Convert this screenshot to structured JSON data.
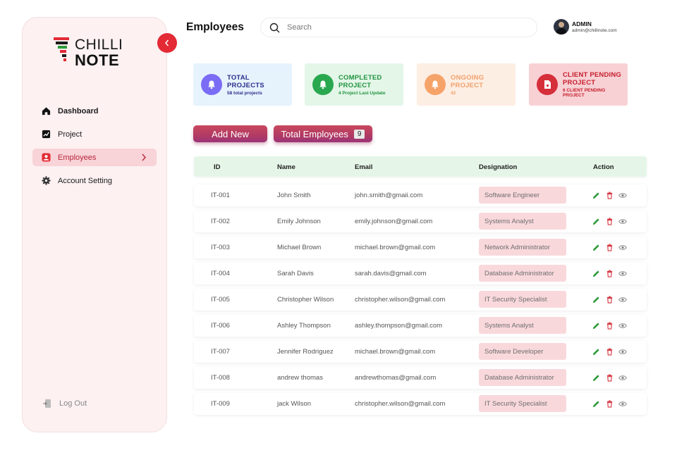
{
  "brand": {
    "line1": "CHILLI",
    "line2": "NOTE"
  },
  "sidebar": {
    "items": [
      {
        "label": "Dashboard",
        "icon": "home-icon"
      },
      {
        "label": "Project",
        "icon": "chart-icon"
      },
      {
        "label": "Employees",
        "icon": "employees-icon",
        "active": true
      },
      {
        "label": "Account Setting",
        "icon": "gear-icon"
      }
    ],
    "logout_label": "Log Out"
  },
  "header": {
    "title": "Employees",
    "search_placeholder": "Search",
    "user_name": "ADMIN",
    "user_email": "admin@chillinote.com"
  },
  "cards": [
    {
      "title1": "TOTAL",
      "title2": "PROJECTS",
      "sub": "58 total projects",
      "bg": "#e6f3fd",
      "circle": "#7b6cf6",
      "color": "#2a2f8a",
      "subcolor": "#2a2f8a"
    },
    {
      "title1": "COMPLETED",
      "title2": "PROJECT",
      "sub": "4 Project Last Update",
      "bg": "#e3f6e8",
      "circle": "#2aa84f",
      "color": "#22943f",
      "subcolor": "#22943f"
    },
    {
      "title1": "ONGOING",
      "title2": "PROJECT",
      "sub": "42",
      "bg": "#fdeee3",
      "circle": "#f6a36a",
      "color": "#f0a06c",
      "subcolor": "#f0a06c"
    },
    {
      "title1": "CLIENT PENDING",
      "title2": "PROJECT",
      "sub": "6 CLIENT PENDING PROJECT",
      "bg": "#f8d1d5",
      "circle": "#d62f3c",
      "color": "#c51f2c",
      "subcolor": "#c51f2c"
    }
  ],
  "buttons": {
    "add_new": "Add New",
    "total_employees": "Total Employees",
    "total_count": "9"
  },
  "table": {
    "columns": [
      "ID",
      "Name",
      "Email",
      "Designation",
      "Action"
    ],
    "rows": [
      {
        "id": "IT-001",
        "name": "John Smith",
        "email": "john.smith@gmaii.com",
        "designation": "Software Engineer"
      },
      {
        "id": "IT-002",
        "name": "Emily Johnson",
        "email": "emily.johnson@gmail.com",
        "designation": "Systems Analyst"
      },
      {
        "id": "IT-003",
        "name": "Michael Brown",
        "email": "michael.brown@gmail.com",
        "designation": "Network Administrator"
      },
      {
        "id": "IT-004",
        "name": "Sarah Davis",
        "email": "sarah.davis@gmail.com",
        "designation": "Database Administrator"
      },
      {
        "id": "IT-005",
        "name": "Christopher Wilson",
        "email": "christopher.wilson@gmail.com",
        "designation": "IT Security Specialist"
      },
      {
        "id": "IT-006",
        "name": "Ashley Thompson",
        "email": "ashley.thompson@gmail.com",
        "designation": "Systems Analyst"
      },
      {
        "id": "IT-007",
        "name": "Jennifer Rodriguez",
        "email": "michael.brown@gmail.com",
        "designation": "Software Developer"
      },
      {
        "id": "IT-008",
        "name": "andrew thomas",
        "email": "andrewthomas@gmail.com",
        "designation": "Database Administrator"
      },
      {
        "id": "IT-009",
        "name": "jack Wilson",
        "email": "christopher.wilson@gmail.com",
        "designation": "IT Security Specialist"
      }
    ]
  },
  "colors": {
    "accent": "#e32a35",
    "edit": "#2e9b3a",
    "delete": "#d6333f",
    "view": "#888888"
  }
}
